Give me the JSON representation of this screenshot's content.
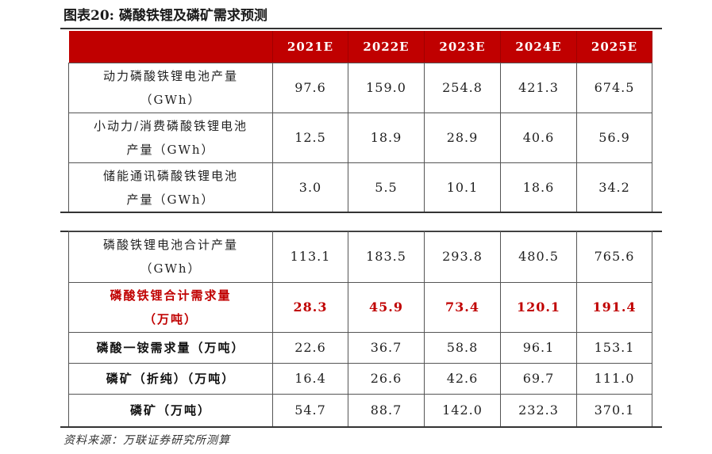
{
  "title": "图表20:  磷酸铁锂及磷矿需求预测",
  "columns": [
    "2021E",
    "2022E",
    "2023E",
    "2024E",
    "2025E"
  ],
  "table1": [
    {
      "label1": "动力磷酸铁锂电池产量",
      "label2": "（GWh）",
      "values": [
        "97.6",
        "159.0",
        "254.8",
        "421.3",
        "674.5"
      ]
    },
    {
      "label1": "小动力/消费磷酸铁锂电池",
      "label2": "产量（GWh）",
      "values": [
        "12.5",
        "18.9",
        "28.9",
        "40.6",
        "56.9"
      ]
    },
    {
      "label1": "储能通讯磷酸铁锂电池",
      "label2": "产量（GWh）",
      "values": [
        "3.0",
        "5.5",
        "10.1",
        "18.6",
        "34.2"
      ]
    }
  ],
  "table2": [
    {
      "label1": "磷酸铁锂电池合计产量",
      "label2": "（GWh）",
      "values": [
        "113.1",
        "183.5",
        "293.8",
        "480.5",
        "765.6"
      ]
    },
    {
      "label1": "磷酸铁锂合计需求量",
      "label2": "（万吨）",
      "values": [
        "28.3",
        "45.9",
        "73.4",
        "120.1",
        "191.4"
      ]
    },
    {
      "label1": "磷酸一铵需求量（万吨）",
      "label2": "",
      "values": [
        "22.6",
        "36.7",
        "58.8",
        "96.1",
        "153.1"
      ]
    },
    {
      "label1": "磷矿（折纯）（万吨）",
      "label2": "",
      "values": [
        "16.4",
        "26.6",
        "42.6",
        "69.7",
        "111.0"
      ]
    },
    {
      "label1": "磷矿（万吨）",
      "label2": "",
      "values": [
        "54.7",
        "88.7",
        "142.0",
        "232.3",
        "370.1"
      ]
    }
  ],
  "source": "资料来源：万联证券研究所测算",
  "colors": {
    "header_bg": "#c00000",
    "highlight_text": "#c00000"
  }
}
